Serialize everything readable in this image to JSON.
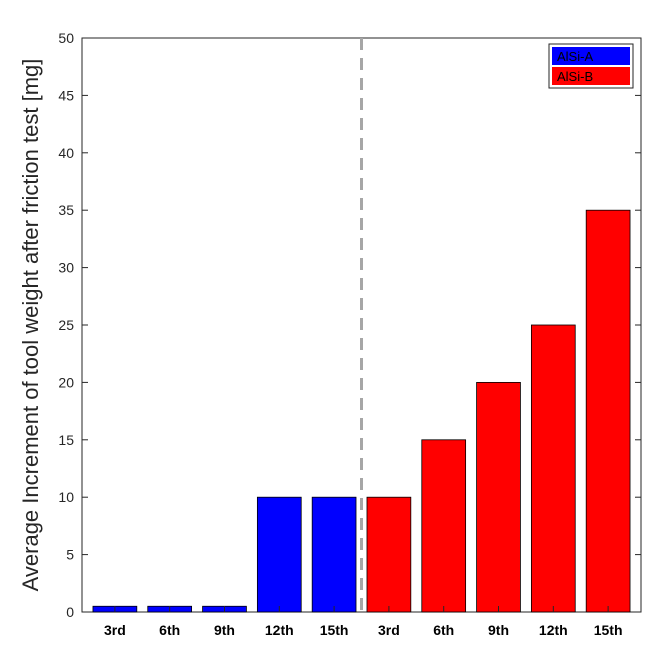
{
  "chart_data": {
    "type": "bar",
    "ylabel": "Average Increment of tool weight after friction test [mg]",
    "xlabel": "",
    "ylim": [
      0,
      50
    ],
    "yticks": [
      0,
      5,
      10,
      15,
      20,
      25,
      30,
      35,
      40,
      45,
      50
    ],
    "grid": false,
    "legend_position": "top-right",
    "series": [
      {
        "name": "AlSi-A",
        "color": "#0000ff",
        "categories": [
          "3rd",
          "6th",
          "9th",
          "12th",
          "15th"
        ],
        "values": [
          0.5,
          0.5,
          0.5,
          10,
          10
        ]
      },
      {
        "name": "AlSi-B",
        "color": "#ff0000",
        "categories": [
          "3rd",
          "6th",
          "9th",
          "12th",
          "15th"
        ],
        "values": [
          10,
          15,
          20,
          25,
          35
        ]
      }
    ],
    "divider": {
      "style": "dashed",
      "color": "#a6a6a6"
    }
  }
}
